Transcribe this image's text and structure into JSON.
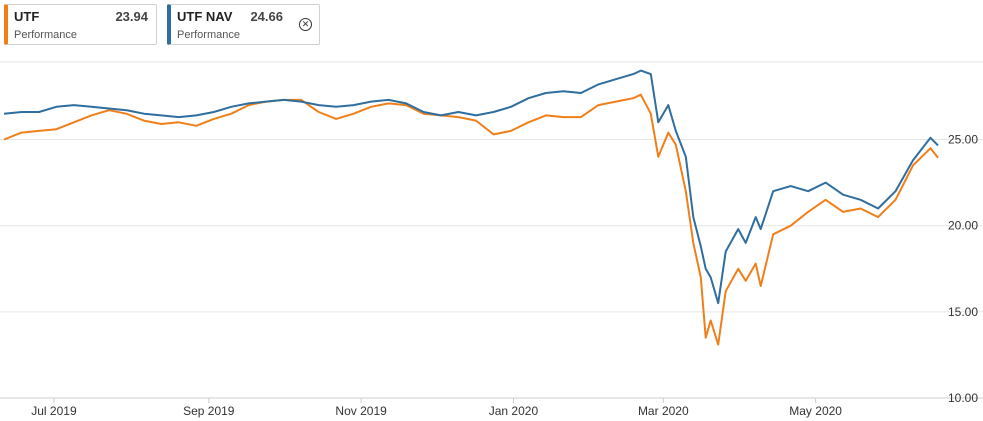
{
  "legend": [
    {
      "name": "UTF",
      "value": "23.94",
      "sublabel": "Performance",
      "color": "#f07f1a",
      "closable": false
    },
    {
      "name": "UTF NAV",
      "value": "24.66",
      "sublabel": "Performance",
      "color": "#2f6e9f",
      "closable": true,
      "close_icon": "close-circle-icon"
    }
  ],
  "chart_data": {
    "type": "line",
    "title": "",
    "xlabel": "",
    "ylabel": "",
    "ylim": [
      10,
      29.5
    ],
    "y_ticks": [
      "25.00",
      "20.00",
      "15.00",
      "10.00"
    ],
    "x_ticks": [
      "Jul 2019",
      "Sep 2019",
      "Nov 2019",
      "Jan 2020",
      "Mar 2020",
      "May 2020"
    ],
    "x_range": [
      "2019-06-11",
      "2020-06-19"
    ],
    "y_axis_position": "right",
    "grid": true,
    "legend_position": "top-left",
    "series": [
      {
        "name": "UTF",
        "color": "#f07f1a",
        "points": [
          [
            "2019-06-11",
            25.0
          ],
          [
            "2019-06-18",
            25.4
          ],
          [
            "2019-06-25",
            25.5
          ],
          [
            "2019-07-02",
            25.6
          ],
          [
            "2019-07-09",
            26.0
          ],
          [
            "2019-07-16",
            26.4
          ],
          [
            "2019-07-23",
            26.7
          ],
          [
            "2019-07-30",
            26.5
          ],
          [
            "2019-08-06",
            26.1
          ],
          [
            "2019-08-13",
            25.9
          ],
          [
            "2019-08-20",
            26.0
          ],
          [
            "2019-08-27",
            25.8
          ],
          [
            "2019-09-03",
            26.2
          ],
          [
            "2019-09-10",
            26.5
          ],
          [
            "2019-09-17",
            27.0
          ],
          [
            "2019-09-24",
            27.2
          ],
          [
            "2019-10-01",
            27.3
          ],
          [
            "2019-10-08",
            27.3
          ],
          [
            "2019-10-15",
            26.6
          ],
          [
            "2019-10-22",
            26.2
          ],
          [
            "2019-10-29",
            26.5
          ],
          [
            "2019-11-05",
            26.9
          ],
          [
            "2019-11-12",
            27.1
          ],
          [
            "2019-11-19",
            27.0
          ],
          [
            "2019-11-26",
            26.5
          ],
          [
            "2019-12-03",
            26.4
          ],
          [
            "2019-12-10",
            26.3
          ],
          [
            "2019-12-17",
            26.1
          ],
          [
            "2019-12-24",
            25.3
          ],
          [
            "2019-12-31",
            25.5
          ],
          [
            "2020-01-07",
            26.0
          ],
          [
            "2020-01-14",
            26.4
          ],
          [
            "2020-01-21",
            26.3
          ],
          [
            "2020-01-28",
            26.3
          ],
          [
            "2020-02-04",
            27.0
          ],
          [
            "2020-02-11",
            27.2
          ],
          [
            "2020-02-18",
            27.4
          ],
          [
            "2020-02-21",
            27.6
          ],
          [
            "2020-02-25",
            26.5
          ],
          [
            "2020-02-28",
            24.0
          ],
          [
            "2020-03-03",
            25.4
          ],
          [
            "2020-03-06",
            24.7
          ],
          [
            "2020-03-10",
            22.0
          ],
          [
            "2020-03-13",
            19.0
          ],
          [
            "2020-03-16",
            17.0
          ],
          [
            "2020-03-18",
            13.5
          ],
          [
            "2020-03-20",
            14.5
          ],
          [
            "2020-03-23",
            13.1
          ],
          [
            "2020-03-26",
            16.2
          ],
          [
            "2020-03-31",
            17.5
          ],
          [
            "2020-04-03",
            16.8
          ],
          [
            "2020-04-07",
            17.8
          ],
          [
            "2020-04-09",
            16.5
          ],
          [
            "2020-04-14",
            19.5
          ],
          [
            "2020-04-21",
            20.0
          ],
          [
            "2020-04-28",
            20.8
          ],
          [
            "2020-05-05",
            21.5
          ],
          [
            "2020-05-12",
            20.8
          ],
          [
            "2020-05-19",
            21.0
          ],
          [
            "2020-05-26",
            20.5
          ],
          [
            "2020-06-02",
            21.5
          ],
          [
            "2020-06-09",
            23.5
          ],
          [
            "2020-06-16",
            24.5
          ],
          [
            "2020-06-19",
            23.94
          ]
        ]
      },
      {
        "name": "UTF NAV",
        "color": "#2f6e9f",
        "points": [
          [
            "2019-06-11",
            26.5
          ],
          [
            "2019-06-18",
            26.6
          ],
          [
            "2019-06-25",
            26.6
          ],
          [
            "2019-07-02",
            26.9
          ],
          [
            "2019-07-09",
            27.0
          ],
          [
            "2019-07-16",
            26.9
          ],
          [
            "2019-07-23",
            26.8
          ],
          [
            "2019-07-30",
            26.7
          ],
          [
            "2019-08-06",
            26.5
          ],
          [
            "2019-08-13",
            26.4
          ],
          [
            "2019-08-20",
            26.3
          ],
          [
            "2019-08-27",
            26.4
          ],
          [
            "2019-09-03",
            26.6
          ],
          [
            "2019-09-10",
            26.9
          ],
          [
            "2019-09-17",
            27.1
          ],
          [
            "2019-09-24",
            27.2
          ],
          [
            "2019-10-01",
            27.3
          ],
          [
            "2019-10-08",
            27.2
          ],
          [
            "2019-10-15",
            27.0
          ],
          [
            "2019-10-22",
            26.9
          ],
          [
            "2019-10-29",
            27.0
          ],
          [
            "2019-11-05",
            27.2
          ],
          [
            "2019-11-12",
            27.3
          ],
          [
            "2019-11-19",
            27.1
          ],
          [
            "2019-11-26",
            26.6
          ],
          [
            "2019-12-03",
            26.4
          ],
          [
            "2019-12-10",
            26.6
          ],
          [
            "2019-12-17",
            26.4
          ],
          [
            "2019-12-24",
            26.6
          ],
          [
            "2019-12-31",
            26.9
          ],
          [
            "2020-01-07",
            27.4
          ],
          [
            "2020-01-14",
            27.7
          ],
          [
            "2020-01-21",
            27.8
          ],
          [
            "2020-01-28",
            27.7
          ],
          [
            "2020-02-04",
            28.2
          ],
          [
            "2020-02-11",
            28.5
          ],
          [
            "2020-02-18",
            28.8
          ],
          [
            "2020-02-21",
            29.0
          ],
          [
            "2020-02-25",
            28.8
          ],
          [
            "2020-02-28",
            26.0
          ],
          [
            "2020-03-03",
            27.0
          ],
          [
            "2020-03-06",
            25.5
          ],
          [
            "2020-03-10",
            24.0
          ],
          [
            "2020-03-13",
            20.5
          ],
          [
            "2020-03-16",
            18.8
          ],
          [
            "2020-03-18",
            17.5
          ],
          [
            "2020-03-20",
            17.0
          ],
          [
            "2020-03-23",
            15.5
          ],
          [
            "2020-03-26",
            18.5
          ],
          [
            "2020-03-31",
            19.8
          ],
          [
            "2020-04-03",
            19.0
          ],
          [
            "2020-04-07",
            20.5
          ],
          [
            "2020-04-09",
            19.8
          ],
          [
            "2020-04-14",
            22.0
          ],
          [
            "2020-04-21",
            22.3
          ],
          [
            "2020-04-28",
            22.0
          ],
          [
            "2020-05-05",
            22.5
          ],
          [
            "2020-05-12",
            21.8
          ],
          [
            "2020-05-19",
            21.5
          ],
          [
            "2020-05-26",
            21.0
          ],
          [
            "2020-06-02",
            22.0
          ],
          [
            "2020-06-09",
            23.8
          ],
          [
            "2020-06-16",
            25.1
          ],
          [
            "2020-06-19",
            24.66
          ]
        ]
      }
    ]
  }
}
